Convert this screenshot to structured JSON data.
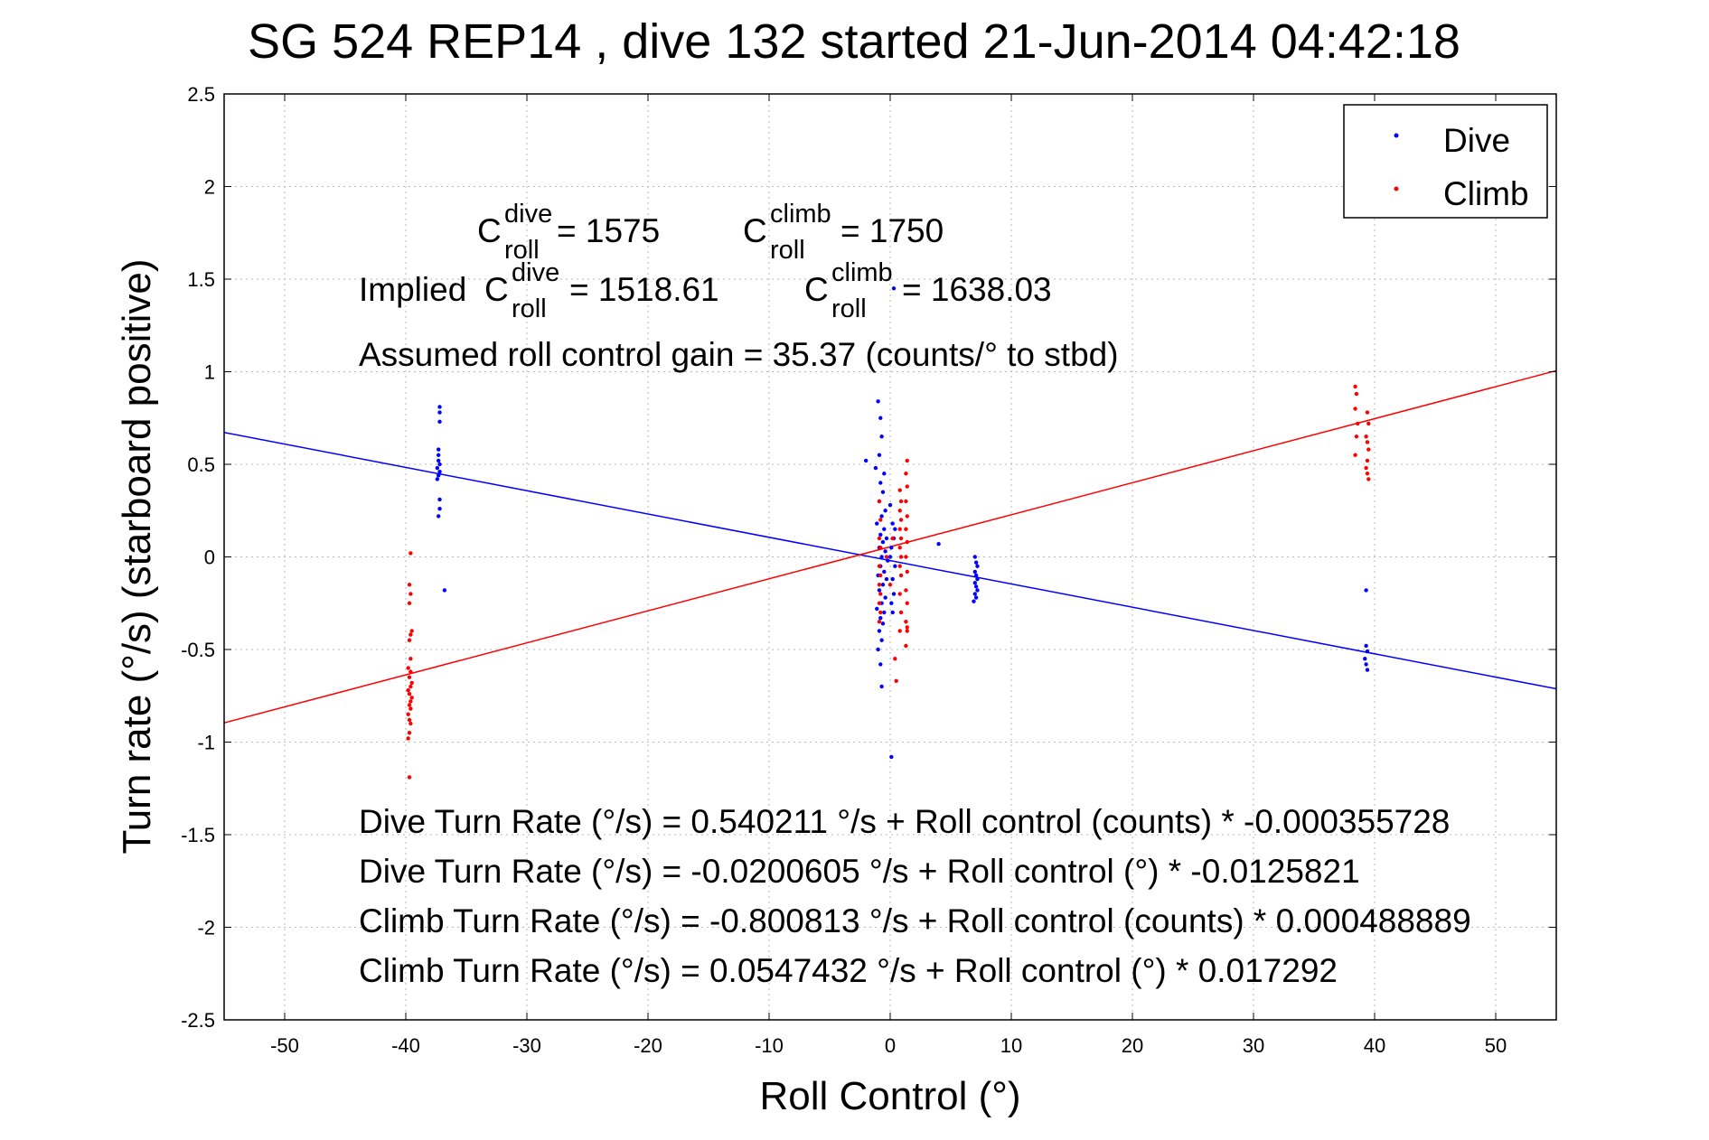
{
  "chart_data": {
    "type": "scatter",
    "title": "SG 524   REP14  , dive 132 started 21-Jun-2014 04:42:18",
    "xlabel": "Roll Control (°)",
    "ylabel": "Turn rate (°/s)  (starboard positive)",
    "xlim": [
      -55,
      55
    ],
    "ylim": [
      -2.5,
      2.5
    ],
    "xticks": [
      -50,
      -40,
      -30,
      -20,
      -10,
      0,
      10,
      20,
      30,
      40,
      50
    ],
    "yticks": [
      2.5,
      2,
      1.5,
      1,
      0.5,
      0,
      -0.5,
      -1,
      -1.5,
      -2,
      -2.5
    ],
    "xtick_labels": [
      "-50",
      "-40",
      "-30",
      "-20",
      "-10",
      "0",
      "10",
      "20",
      "30",
      "40",
      "50"
    ],
    "ytick_labels": [
      "2.5",
      "2",
      "1.5",
      "1",
      "0.5",
      "0",
      "-0.5",
      "-1",
      "-1.5",
      "-2",
      "-2.5"
    ],
    "grid": true,
    "legend_position": "top-right",
    "series": [
      {
        "name": "Dive",
        "color": "#0000ff",
        "points": [
          [
            -37.2,
            0.81
          ],
          [
            -37.2,
            0.78
          ],
          [
            -37.2,
            0.73
          ],
          [
            -37.3,
            0.58
          ],
          [
            -37.3,
            0.55
          ],
          [
            -37.3,
            0.52
          ],
          [
            -37.2,
            0.5
          ],
          [
            -37.4,
            0.48
          ],
          [
            -37.2,
            0.46
          ],
          [
            -37.3,
            0.44
          ],
          [
            -37.4,
            0.42
          ],
          [
            -37.2,
            0.31
          ],
          [
            -37.2,
            0.26
          ],
          [
            -37.3,
            0.22
          ],
          [
            -36.8,
            -0.18
          ],
          [
            -1.0,
            0.84
          ],
          [
            -0.8,
            0.75
          ],
          [
            -0.7,
            0.65
          ],
          [
            -0.9,
            0.55
          ],
          [
            -1.2,
            0.48
          ],
          [
            -0.5,
            0.45
          ],
          [
            -0.8,
            0.4
          ],
          [
            -0.6,
            0.35
          ],
          [
            -0.9,
            0.3
          ],
          [
            -0.4,
            0.25
          ],
          [
            -0.7,
            0.22
          ],
          [
            -1.1,
            0.18
          ],
          [
            -0.5,
            0.15
          ],
          [
            -0.8,
            0.12
          ],
          [
            -0.3,
            0.1
          ],
          [
            -0.6,
            0.08
          ],
          [
            -0.9,
            0.05
          ],
          [
            -0.4,
            0.03
          ],
          [
            -0.7,
            0.0
          ],
          [
            -0.2,
            -0.02
          ],
          [
            -0.8,
            -0.05
          ],
          [
            -0.5,
            -0.08
          ],
          [
            -1.0,
            -0.1
          ],
          [
            -0.3,
            -0.12
          ],
          [
            -0.6,
            -0.15
          ],
          [
            -0.9,
            -0.18
          ],
          [
            -0.4,
            -0.22
          ],
          [
            -0.7,
            -0.25
          ],
          [
            -1.1,
            -0.28
          ],
          [
            -0.5,
            -0.3
          ],
          [
            -0.8,
            -0.33
          ],
          [
            -0.6,
            -0.36
          ],
          [
            -0.9,
            -0.4
          ],
          [
            -0.7,
            -0.45
          ],
          [
            -1.0,
            -0.5
          ],
          [
            -0.8,
            -0.58
          ],
          [
            -0.7,
            -0.7
          ],
          [
            0.0,
            0.28
          ],
          [
            0.2,
            0.18
          ],
          [
            0.3,
            0.1
          ],
          [
            0.1,
            0.05
          ],
          [
            0.4,
            -0.05
          ],
          [
            0.2,
            -0.12
          ],
          [
            0.3,
            -0.2
          ],
          [
            0.1,
            -0.25
          ],
          [
            0.0,
            0.0
          ],
          [
            0.4,
            0.15
          ],
          [
            0.2,
            -0.3
          ],
          [
            0.1,
            -1.08
          ],
          [
            0.3,
            1.45
          ],
          [
            -2.0,
            0.52
          ],
          [
            4.0,
            0.07
          ],
          [
            7.0,
            0.0
          ],
          [
            7.1,
            -0.03
          ],
          [
            7.2,
            -0.05
          ],
          [
            7.0,
            -0.08
          ],
          [
            7.1,
            -0.1
          ],
          [
            7.2,
            -0.12
          ],
          [
            7.0,
            -0.14
          ],
          [
            7.1,
            -0.16
          ],
          [
            7.2,
            -0.18
          ],
          [
            7.0,
            -0.2
          ],
          [
            7.1,
            -0.22
          ],
          [
            6.9,
            -0.24
          ],
          [
            39.3,
            -0.18
          ],
          [
            39.3,
            -0.48
          ],
          [
            39.4,
            -0.51
          ],
          [
            39.2,
            -0.55
          ],
          [
            39.3,
            -0.58
          ],
          [
            39.4,
            -0.61
          ]
        ]
      },
      {
        "name": "Climb",
        "color": "#ff0000",
        "points": [
          [
            -39.6,
            0.02
          ],
          [
            -39.7,
            -0.15
          ],
          [
            -39.6,
            -0.2
          ],
          [
            -39.7,
            -0.25
          ],
          [
            -39.5,
            -0.4
          ],
          [
            -39.6,
            -0.42
          ],
          [
            -39.7,
            -0.45
          ],
          [
            -39.6,
            -0.55
          ],
          [
            -39.8,
            -0.6
          ],
          [
            -39.6,
            -0.62
          ],
          [
            -39.7,
            -0.65
          ],
          [
            -39.5,
            -0.68
          ],
          [
            -39.6,
            -0.7
          ],
          [
            -39.8,
            -0.72
          ],
          [
            -39.7,
            -0.74
          ],
          [
            -39.5,
            -0.76
          ],
          [
            -39.6,
            -0.78
          ],
          [
            -39.7,
            -0.8
          ],
          [
            -39.6,
            -0.82
          ],
          [
            -39.8,
            -0.85
          ],
          [
            -39.7,
            -0.88
          ],
          [
            -39.6,
            -0.9
          ],
          [
            -39.7,
            -0.95
          ],
          [
            -39.8,
            -0.98
          ],
          [
            -39.7,
            -1.19
          ],
          [
            -0.9,
            0.3
          ],
          [
            -0.8,
            0.2
          ],
          [
            -0.9,
            0.1
          ],
          [
            -0.8,
            0.05
          ],
          [
            -0.9,
            -0.05
          ],
          [
            -0.8,
            -0.1
          ],
          [
            -0.9,
            -0.15
          ],
          [
            -0.8,
            -0.2
          ],
          [
            -0.9,
            -0.25
          ],
          [
            -0.8,
            -0.3
          ],
          [
            -0.9,
            -0.35
          ],
          [
            0.8,
            0.36
          ],
          [
            0.9,
            0.3
          ],
          [
            0.8,
            0.25
          ],
          [
            0.9,
            0.2
          ],
          [
            0.8,
            0.15
          ],
          [
            0.9,
            0.1
          ],
          [
            0.8,
            0.05
          ],
          [
            0.9,
            0.0
          ],
          [
            0.8,
            -0.05
          ],
          [
            0.9,
            -0.1
          ],
          [
            0.8,
            -0.2
          ],
          [
            0.9,
            -0.3
          ],
          [
            0.8,
            -0.4
          ],
          [
            0.5,
            -0.67
          ],
          [
            0.4,
            -0.55
          ],
          [
            1.4,
            0.52
          ],
          [
            1.3,
            0.45
          ],
          [
            1.4,
            0.38
          ],
          [
            1.3,
            0.3
          ],
          [
            1.4,
            0.22
          ],
          [
            1.3,
            0.15
          ],
          [
            1.4,
            0.08
          ],
          [
            1.3,
            0.0
          ],
          [
            1.4,
            -0.08
          ],
          [
            1.3,
            -0.18
          ],
          [
            1.4,
            -0.25
          ],
          [
            1.3,
            -0.35
          ],
          [
            1.4,
            -0.4
          ],
          [
            1.3,
            -0.48
          ],
          [
            1.4,
            -0.38
          ],
          [
            0.2,
            0.1
          ],
          [
            -0.3,
            0.0
          ],
          [
            0.0,
            -0.15
          ],
          [
            38.4,
            0.92
          ],
          [
            38.5,
            0.88
          ],
          [
            38.4,
            0.8
          ],
          [
            38.6,
            0.72
          ],
          [
            38.5,
            0.65
          ],
          [
            38.4,
            0.55
          ],
          [
            39.4,
            0.78
          ],
          [
            39.5,
            0.72
          ],
          [
            39.3,
            0.65
          ],
          [
            39.4,
            0.62
          ],
          [
            39.5,
            0.58
          ],
          [
            39.4,
            0.52
          ],
          [
            39.3,
            0.48
          ],
          [
            39.4,
            0.45
          ],
          [
            39.5,
            0.42
          ]
        ]
      }
    ],
    "fit_lines": [
      {
        "name": "Dive fit",
        "color": "#0000ff",
        "intercept": -0.0200605,
        "slope": -0.0125821
      },
      {
        "name": "Climb fit",
        "color": "#ff0000",
        "intercept": 0.0547432,
        "slope": 0.017292
      }
    ],
    "annotations": {
      "c_dive": {
        "main": "C",
        "sup": "dive",
        "sub": "roll",
        "value": " = 1575"
      },
      "c_climb": {
        "main": "C",
        "sup": "climb",
        "sub": "roll",
        "value": " = 1750"
      },
      "implied_prefix": "Implied ",
      "implied_dive": {
        "main": "C",
        "sup": "dive",
        "sub": "roll",
        "value": " = 1518.61"
      },
      "implied_climb": {
        "main": "C",
        "sup": "climb",
        "sub": "roll",
        "value": " = 1638.03"
      },
      "gain": "Assumed roll control gain = 35.37 (counts/° to stbd)",
      "eq1": "Dive Turn Rate (°/s) = 0.540211 °/s + Roll control (counts) * -0.000355728",
      "eq2": "Dive Turn Rate (°/s) = -0.0200605 °/s + Roll control (°) * -0.0125821",
      "eq3": "Climb Turn Rate (°/s) = -0.800813 °/s + Roll control (counts) * 0.000488889",
      "eq4": "Climb Turn Rate (°/s) = 0.0547432 °/s + Roll control (°) * 0.017292"
    },
    "legend": [
      {
        "label": "Dive",
        "color": "#0000ff"
      },
      {
        "label": "Climb",
        "color": "#ff0000"
      }
    ]
  }
}
